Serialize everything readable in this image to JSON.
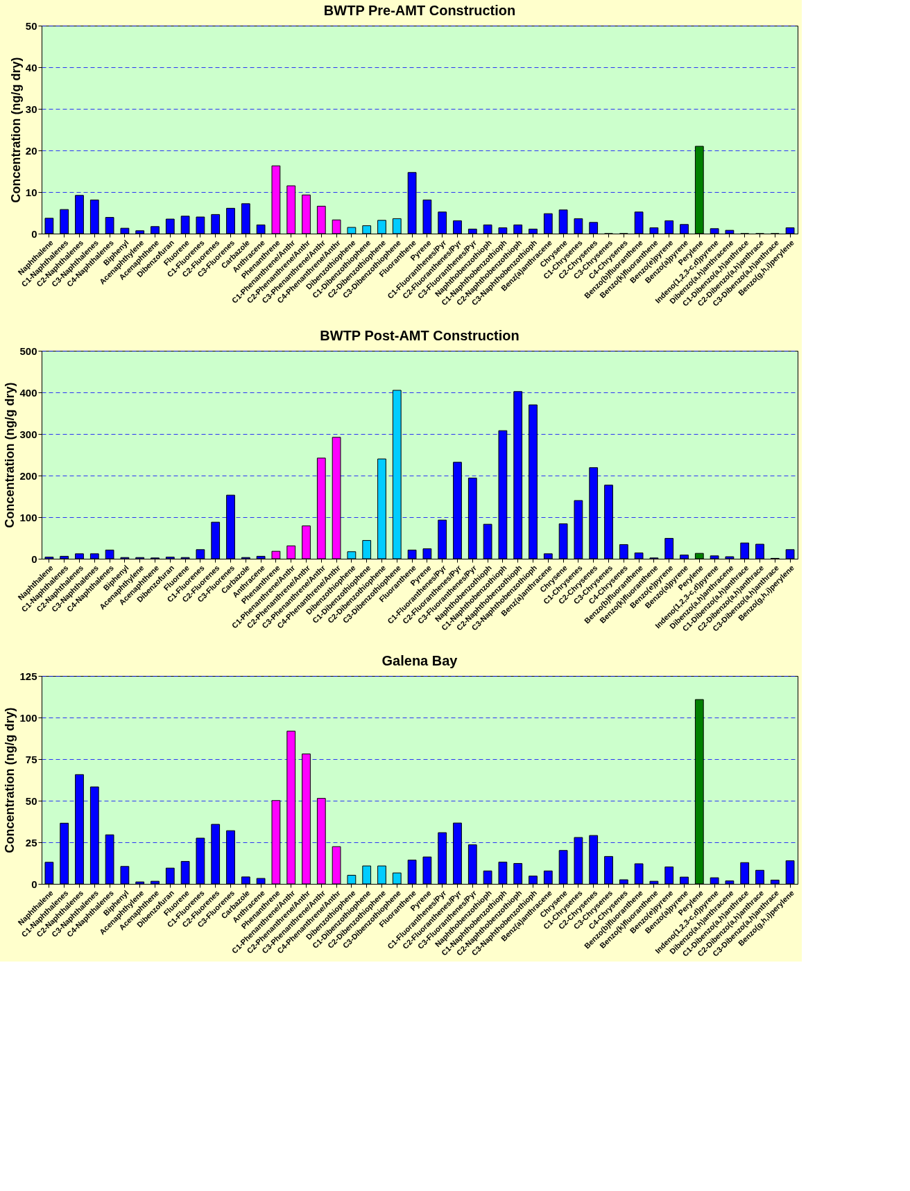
{
  "chart_data": [
    {
      "type": "bar",
      "title": "BWTP Pre-AMT Construction",
      "ylabel": "Concentration (ng/g dry)",
      "categories": [
        "Naphthalene",
        "C1-Naphthalenes",
        "C2-Naphthalenes",
        "C3-Naphthalenes",
        "C4-Naphthalenes",
        "Biphenyl",
        "Acenaphthylene",
        "Acenaphthene",
        "Dibenzofuran",
        "Fluorene",
        "C1-Fluorenes",
        "C2-Fluorenes",
        "C3-Fluorenes",
        "Carbazole",
        "Anthracene",
        "Phenanthrene",
        "C1-Phenanthrene/Anthr",
        "C2-Phenanthrene/Anthr",
        "C3-Phenanthrene/Anthr",
        "C4-Phenanthrene/Anthr",
        "Dibenzothiophene",
        "C1-Dibenzothiophene",
        "C2-Dibenzothiophene",
        "C3-Dibenzothiophene",
        "Fluoranthene",
        "Pyrene",
        "C1-Fluoranthenes/Pyr",
        "C2-Fluoranthenes/Pyr",
        "C3-Fluoranthenes/Pyr",
        "Naphthobenzothioph",
        "C1-Naphthobenzothioph",
        "C2-Naphthobenzothioph",
        "C3-Naphthobenzothioph",
        "Benz(a)anthracene",
        "Chrysene",
        "C1-Chrysenes",
        "C2-Chrysenes",
        "C3-Chrysenes",
        "C4-Chrysenes",
        "Benzo(b)fluoranthene",
        "Benzo(k)fluoranthene",
        "Benzo(e)pyrene",
        "Benzo(a)pyrene",
        "Perylene",
        "Indeno(1,2,3-c,d)pyrene",
        "Dibenzo(a,h)anthracene",
        "C1-Dibenzo(a,h)anthrace",
        "C2-Dibenzo(a,h)anthrace",
        "C3-Dibenzo(a,h)anthrace",
        "Benzo(g,h,i)perylene"
      ],
      "values": [
        3.7,
        5.8,
        9.2,
        8.1,
        3.9,
        1.3,
        0.7,
        1.7,
        3.5,
        4.2,
        4.0,
        4.6,
        6.1,
        7.2,
        2.1,
        16.3,
        11.5,
        9.3,
        6.6,
        3.3,
        1.5,
        1.9,
        3.2,
        3.6,
        14.7,
        8.1,
        5.2,
        3.1,
        1.1,
        2.1,
        1.4,
        2.1,
        1.1,
        4.8,
        5.7,
        3.6,
        2.7,
        0,
        0,
        5.2,
        1.4,
        3.1,
        2.2,
        21,
        1.2,
        0.8,
        0,
        0,
        0,
        1.4
      ],
      "colors": [
        "#0000ff",
        "#0000ff",
        "#0000ff",
        "#0000ff",
        "#0000ff",
        "#0000ff",
        "#0000ff",
        "#0000ff",
        "#0000ff",
        "#0000ff",
        "#0000ff",
        "#0000ff",
        "#0000ff",
        "#0000ff",
        "#0000ff",
        "#ff00ff",
        "#ff00ff",
        "#ff00ff",
        "#ff00ff",
        "#ff00ff",
        "#00ccff",
        "#00ccff",
        "#00ccff",
        "#00ccff",
        "#0000ff",
        "#0000ff",
        "#0000ff",
        "#0000ff",
        "#0000ff",
        "#0000ff",
        "#0000ff",
        "#0000ff",
        "#0000ff",
        "#0000ff",
        "#0000ff",
        "#0000ff",
        "#0000ff",
        "#0000ff",
        "#0000ff",
        "#0000ff",
        "#0000ff",
        "#0000ff",
        "#0000ff",
        "#008000",
        "#0000ff",
        "#0000ff",
        "#0000ff",
        "#0000ff",
        "#0000ff",
        "#0000ff"
      ],
      "ylim": [
        0,
        50
      ],
      "yticks": [
        0,
        10,
        20,
        30,
        40,
        50
      ],
      "grid": "y"
    },
    {
      "type": "bar",
      "title": "BWTP Post-AMT Construction",
      "ylabel": "Concentration (ng/g dry)",
      "categories": [
        "Naphthalene",
        "C1-Naphthalenes",
        "C2-Naphthalenes",
        "C3-Naphthalenes",
        "C4-Naphthalenes",
        "Biphenyl",
        "Acenaphthylene",
        "Acenaphthene",
        "Dibenzofuran",
        "Fluorene",
        "C1-Fluorenes",
        "C2-Fluorenes",
        "C3-Fluorenes",
        "Carbazole",
        "Anthracene",
        "Phenanthrene",
        "C1-Phenanthrene/Anthr",
        "C2-Phenanthrene/Anthr",
        "C3-Phenanthrene/Anthr",
        "C4-Phenanthrene/Anthr",
        "Dibenzothiophene",
        "C1-Dibenzothiophene",
        "C2-Dibenzothiophene",
        "C3-Dibenzothiophene",
        "Fluoranthene",
        "Pyrene",
        "C1-Fluoranthenes/Pyr",
        "C2-Fluoranthenes/Pyr",
        "C3-Fluoranthenes/Pyr",
        "Naphthobenzothioph",
        "C1-Naphthobenzothioph",
        "C2-Naphthobenzothioph",
        "C3-Naphthobenzothioph",
        "Benz(a)anthracene",
        "Chrysene",
        "C1-Chrysenes",
        "C2-Chrysenes",
        "C3-Chrysenes",
        "C4-Chrysenes",
        "Benzo(b)fluoranthene",
        "Benzo(k)fluoranthene",
        "Benzo(e)pyrene",
        "Benzo(a)pyrene",
        "Perylene",
        "Indeno(1,2,3-c,d)pyrene",
        "Dibenzo(a,h)anthracene",
        "C1-Dibenzo(a,h)anthrace",
        "C2-Dibenzo(a,h)anthrace",
        "C3-Dibenzo(a,h)anthrace",
        "Benzo(g,h,i)perylene"
      ],
      "values": [
        4,
        6,
        12,
        12,
        21,
        3,
        3,
        2,
        4,
        3,
        22,
        88,
        153,
        3,
        6,
        18,
        31,
        79,
        242,
        292,
        17,
        44,
        240,
        405,
        21,
        24,
        93,
        232,
        194,
        83,
        308,
        402,
        370,
        12,
        84,
        140,
        219,
        177,
        34,
        14,
        2,
        49,
        9,
        13,
        7,
        5,
        38,
        35,
        1,
        22
      ],
      "colors": [
        "#0000ff",
        "#0000ff",
        "#0000ff",
        "#0000ff",
        "#0000ff",
        "#0000ff",
        "#0000ff",
        "#0000ff",
        "#0000ff",
        "#0000ff",
        "#0000ff",
        "#0000ff",
        "#0000ff",
        "#0000ff",
        "#0000ff",
        "#ff00ff",
        "#ff00ff",
        "#ff00ff",
        "#ff00ff",
        "#ff00ff",
        "#00ccff",
        "#00ccff",
        "#00ccff",
        "#00ccff",
        "#0000ff",
        "#0000ff",
        "#0000ff",
        "#0000ff",
        "#0000ff",
        "#0000ff",
        "#0000ff",
        "#0000ff",
        "#0000ff",
        "#0000ff",
        "#0000ff",
        "#0000ff",
        "#0000ff",
        "#0000ff",
        "#0000ff",
        "#0000ff",
        "#0000ff",
        "#0000ff",
        "#0000ff",
        "#008000",
        "#0000ff",
        "#0000ff",
        "#0000ff",
        "#0000ff",
        "#0000ff",
        "#0000ff"
      ],
      "ylim": [
        0,
        500
      ],
      "yticks": [
        0,
        100,
        200,
        300,
        400,
        500
      ],
      "grid": "y"
    },
    {
      "type": "bar",
      "title": "Galena Bay",
      "ylabel": "Concentration (ng/g dry)",
      "categories": [
        "Naphthalene",
        "C1-Naphthalenes",
        "C2-Naphthalenes",
        "C3-Naphthalenes",
        "C4-Naphthalenes",
        "Biphenyl",
        "Acenaphthylene",
        "Acenaphthene",
        "Dibenzofuran",
        "Fluorene",
        "C1-Fluorenes",
        "C2-Fluorenes",
        "C3-Fluorenes",
        "Carbazole",
        "Anthracene",
        "Phenanthrene",
        "C1-Phenanthrene/Anthr",
        "C2-Phenanthrene/Anthr",
        "C3-Phenanthrene/Anthr",
        "C4-Phenanthrene/Anthr",
        "Dibenzothiophene",
        "C1-Dibenzothiophene",
        "C2-Dibenzothiophene",
        "C3-Dibenzothiophene",
        "Fluoranthene",
        "Pyrene",
        "C1-Fluoranthenes/Pyr",
        "C2-Fluoranthenes/Pyr",
        "C3-Fluoranthenes/Pyr",
        "Naphthobenzothioph",
        "C1-Naphthobenzothioph",
        "C2-Naphthobenzothioph",
        "C3-Naphthobenzothioph",
        "Benz(a)anthracene",
        "Chrysene",
        "C1-Chrysenes",
        "C2-Chrysenes",
        "C3-Chrysenes",
        "C4-Chrysenes",
        "Benzo(b)fluoranthene",
        "Benzo(k)fluoranthene",
        "Benzo(e)pyrene",
        "Benzo(a)pyrene",
        "Perylene",
        "Indeno(1,2,3-c,d)pyrene",
        "Dibenzo(a,h)anthracene",
        "C1-Dibenzo(a,h)anthrace",
        "C2-Dibenzo(a,h)anthrace",
        "C3-Dibenzo(a,h)anthrace",
        "Benzo(g,h,i)perylene"
      ],
      "values": [
        13,
        36.5,
        65.7,
        58.3,
        29.5,
        10.5,
        1.2,
        1.6,
        9.5,
        13.5,
        27.5,
        35.8,
        32,
        4.2,
        3.3,
        50.1,
        91.8,
        78.1,
        51.4,
        22.4,
        5.2,
        10.8,
        10.8,
        6.6,
        14.3,
        16.2,
        30.8,
        36.6,
        23.5,
        7.8,
        13.1,
        12.3,
        4.7,
        7.8,
        20.1,
        27.9,
        29.1,
        16.5,
        2.5,
        12.1,
        1.6,
        10.2,
        4.1,
        110.8,
        3.7,
        1.8,
        12.8,
        8.2,
        2.3,
        13.9
      ],
      "colors": [
        "#0000ff",
        "#0000ff",
        "#0000ff",
        "#0000ff",
        "#0000ff",
        "#0000ff",
        "#0000ff",
        "#0000ff",
        "#0000ff",
        "#0000ff",
        "#0000ff",
        "#0000ff",
        "#0000ff",
        "#0000ff",
        "#0000ff",
        "#ff00ff",
        "#ff00ff",
        "#ff00ff",
        "#ff00ff",
        "#ff00ff",
        "#00ccff",
        "#00ccff",
        "#00ccff",
        "#00ccff",
        "#0000ff",
        "#0000ff",
        "#0000ff",
        "#0000ff",
        "#0000ff",
        "#0000ff",
        "#0000ff",
        "#0000ff",
        "#0000ff",
        "#0000ff",
        "#0000ff",
        "#0000ff",
        "#0000ff",
        "#0000ff",
        "#0000ff",
        "#0000ff",
        "#0000ff",
        "#0000ff",
        "#0000ff",
        "#008000",
        "#0000ff",
        "#0000ff",
        "#0000ff",
        "#0000ff",
        "#0000ff",
        "#0000ff"
      ],
      "ylim": [
        0,
        125
      ],
      "yticks": [
        0,
        25,
        50,
        75,
        100,
        125
      ],
      "grid": "y"
    }
  ]
}
